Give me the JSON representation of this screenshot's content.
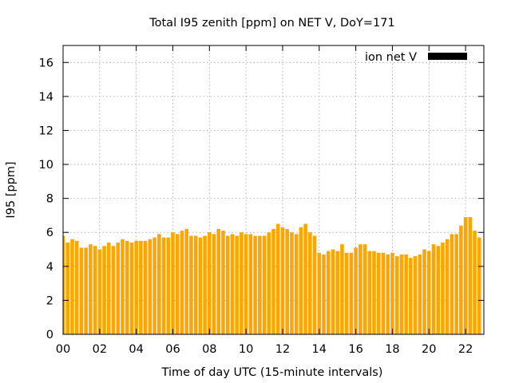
{
  "chart_data": {
    "type": "bar",
    "title": "Total I95 zenith [ppm] on NET V, DoY=171",
    "xlabel": "Time of day UTC (15-minute intervals)",
    "ylabel": "I95 [ppm]",
    "xlim": [
      0,
      23
    ],
    "ylim": [
      0,
      17
    ],
    "xticks": [
      "00",
      "02",
      "04",
      "06",
      "08",
      "10",
      "12",
      "14",
      "16",
      "18",
      "20",
      "22"
    ],
    "yticks": [
      "0",
      "2",
      "4",
      "6",
      "8",
      "10",
      "12",
      "14",
      "16"
    ],
    "grid": true,
    "legend_position": "top-right",
    "series": [
      {
        "name": "ion net V",
        "color": "#ffa500",
        "legend_color": "#000000",
        "interval_hours": 0.25,
        "values": [
          5.8,
          5.4,
          5.6,
          5.5,
          5.1,
          5.1,
          5.3,
          5.2,
          5.0,
          5.2,
          5.4,
          5.2,
          5.4,
          5.6,
          5.5,
          5.4,
          5.5,
          5.5,
          5.5,
          5.6,
          5.7,
          5.9,
          5.7,
          5.7,
          6.0,
          5.9,
          6.1,
          6.2,
          5.8,
          5.8,
          5.7,
          5.8,
          6.0,
          5.9,
          6.2,
          6.1,
          5.8,
          5.9,
          5.8,
          6.0,
          5.9,
          5.9,
          5.8,
          5.8,
          5.8,
          6.0,
          6.2,
          6.5,
          6.3,
          6.2,
          6.0,
          5.9,
          6.3,
          6.5,
          6.0,
          5.8,
          4.8,
          4.7,
          4.9,
          5.0,
          4.9,
          5.3,
          4.8,
          4.8,
          5.1,
          5.3,
          5.3,
          4.9,
          4.9,
          4.8,
          4.8,
          4.7,
          4.8,
          4.6,
          4.7,
          4.7,
          4.5,
          4.6,
          4.7,
          5.0,
          4.9,
          5.3,
          5.2,
          5.4,
          5.6,
          5.9,
          5.9,
          6.4,
          6.9,
          6.9,
          6.1,
          5.7
        ]
      }
    ]
  }
}
